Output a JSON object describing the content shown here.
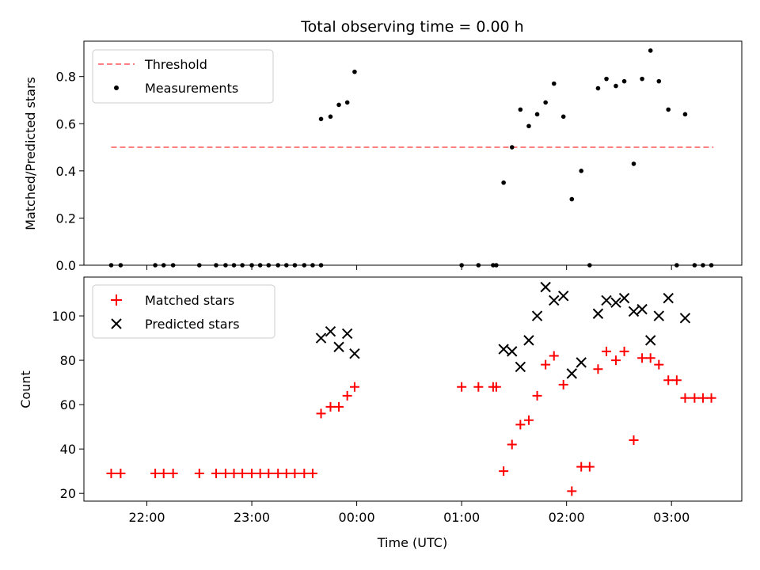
{
  "chart_data": {
    "type": "scatter",
    "title": "Total observing time = 0.00 h",
    "xlabel": "Time (UTC)",
    "x_unit": "hours UTC (22 = 22:00, 24 = 00:00, 27 = 03:00)",
    "xlim": [
      21.4,
      27.67
    ],
    "xticks": [
      {
        "value": 22,
        "label": "22:00"
      },
      {
        "value": 23,
        "label": "23:00"
      },
      {
        "value": 24,
        "label": "00:00"
      },
      {
        "value": 25,
        "label": "01:00"
      },
      {
        "value": 26,
        "label": "02:00"
      },
      {
        "value": 27,
        "label": "03:00"
      }
    ],
    "panels": [
      {
        "id": "ratio",
        "ylabel": "Matched/Predicted stars",
        "ylim": [
          0,
          0.95
        ],
        "yticks": [
          {
            "value": 0,
            "label": "0.0"
          },
          {
            "value": 0.2,
            "label": "0.2"
          },
          {
            "value": 0.4,
            "label": "0.4"
          },
          {
            "value": 0.6,
            "label": "0.6"
          },
          {
            "value": 0.8,
            "label": "0.8"
          }
        ],
        "legend": [
          {
            "label": "Threshold",
            "marker": "dashed-line",
            "color": "#ff8080"
          },
          {
            "label": "Measurements",
            "marker": "dot",
            "color": "#000000"
          }
        ],
        "threshold": {
          "value": 0.5,
          "x_start": 21.66,
          "x_end": 27.4,
          "color": "#ff8080"
        },
        "series": [
          {
            "label": "Measurements",
            "marker": "dot",
            "color": "#000000",
            "points": [
              [
                21.66,
                0
              ],
              [
                21.75,
                0
              ],
              [
                22.08,
                0
              ],
              [
                22.16,
                0
              ],
              [
                22.25,
                0
              ],
              [
                22.5,
                0
              ],
              [
                22.66,
                0
              ],
              [
                22.75,
                0
              ],
              [
                22.83,
                0
              ],
              [
                22.91,
                0
              ],
              [
                23.0,
                0
              ],
              [
                23.08,
                0
              ],
              [
                23.16,
                0
              ],
              [
                23.25,
                0
              ],
              [
                23.33,
                0
              ],
              [
                23.41,
                0
              ],
              [
                23.5,
                0
              ],
              [
                23.58,
                0
              ],
              [
                23.66,
                0
              ],
              [
                23.66,
                0.62
              ],
              [
                23.75,
                0.63
              ],
              [
                23.83,
                0.68
              ],
              [
                23.91,
                0.69
              ],
              [
                23.98,
                0.82
              ],
              [
                25.0,
                0
              ],
              [
                25.16,
                0
              ],
              [
                25.3,
                0
              ],
              [
                25.33,
                0
              ],
              [
                25.4,
                0.35
              ],
              [
                25.48,
                0.5
              ],
              [
                25.56,
                0.66
              ],
              [
                25.64,
                0.59
              ],
              [
                25.72,
                0.64
              ],
              [
                25.8,
                0.69
              ],
              [
                25.88,
                0.77
              ],
              [
                25.97,
                0.63
              ],
              [
                26.05,
                0.28
              ],
              [
                26.14,
                0.4
              ],
              [
                26.22,
                0
              ],
              [
                26.3,
                0.75
              ],
              [
                26.38,
                0.79
              ],
              [
                26.47,
                0.76
              ],
              [
                26.55,
                0.78
              ],
              [
                26.64,
                0.43
              ],
              [
                26.72,
                0.79
              ],
              [
                26.8,
                0.91
              ],
              [
                26.88,
                0.78
              ],
              [
                26.97,
                0.66
              ],
              [
                27.05,
                0
              ],
              [
                27.13,
                0.64
              ],
              [
                27.22,
                0
              ],
              [
                27.3,
                0
              ],
              [
                27.38,
                0
              ]
            ]
          }
        ]
      },
      {
        "id": "counts",
        "ylabel": "Count",
        "ylim": [
          16.5,
          117.5
        ],
        "yticks": [
          {
            "value": 20,
            "label": "20"
          },
          {
            "value": 40,
            "label": "40"
          },
          {
            "value": 60,
            "label": "60"
          },
          {
            "value": 80,
            "label": "80"
          },
          {
            "value": 100,
            "label": "100"
          }
        ],
        "legend": [
          {
            "label": "Matched stars",
            "marker": "plus",
            "color": "#ff0000"
          },
          {
            "label": "Predicted stars",
            "marker": "x",
            "color": "#000000"
          }
        ],
        "series": [
          {
            "label": "Matched stars",
            "marker": "plus",
            "color": "#ff0000",
            "points": [
              [
                21.66,
                29
              ],
              [
                21.75,
                29
              ],
              [
                22.08,
                29
              ],
              [
                22.16,
                29
              ],
              [
                22.25,
                29
              ],
              [
                22.5,
                29
              ],
              [
                22.66,
                29
              ],
              [
                22.75,
                29
              ],
              [
                22.83,
                29
              ],
              [
                22.91,
                29
              ],
              [
                23.0,
                29
              ],
              [
                23.08,
                29
              ],
              [
                23.16,
                29
              ],
              [
                23.25,
                29
              ],
              [
                23.33,
                29
              ],
              [
                23.41,
                29
              ],
              [
                23.5,
                29
              ],
              [
                23.58,
                29
              ],
              [
                23.66,
                56
              ],
              [
                23.75,
                59
              ],
              [
                23.83,
                59
              ],
              [
                23.91,
                64
              ],
              [
                23.98,
                68
              ],
              [
                25.0,
                68
              ],
              [
                25.16,
                68
              ],
              [
                25.3,
                68
              ],
              [
                25.33,
                68
              ],
              [
                25.4,
                30
              ],
              [
                25.48,
                42
              ],
              [
                25.56,
                51
              ],
              [
                25.64,
                53
              ],
              [
                25.72,
                64
              ],
              [
                25.8,
                78
              ],
              [
                25.88,
                82
              ],
              [
                25.97,
                69
              ],
              [
                26.05,
                21
              ],
              [
                26.14,
                32
              ],
              [
                26.22,
                32
              ],
              [
                26.3,
                76
              ],
              [
                26.38,
                84
              ],
              [
                26.47,
                80
              ],
              [
                26.55,
                84
              ],
              [
                26.64,
                44
              ],
              [
                26.72,
                81
              ],
              [
                26.8,
                81
              ],
              [
                26.88,
                78
              ],
              [
                26.97,
                71
              ],
              [
                27.05,
                71
              ],
              [
                27.13,
                63
              ],
              [
                27.22,
                63
              ],
              [
                27.3,
                63
              ],
              [
                27.38,
                63
              ]
            ]
          },
          {
            "label": "Predicted stars",
            "marker": "x",
            "color": "#000000",
            "points": [
              [
                23.66,
                90
              ],
              [
                23.75,
                93
              ],
              [
                23.83,
                86
              ],
              [
                23.91,
                92
              ],
              [
                23.98,
                83
              ],
              [
                25.4,
                85
              ],
              [
                25.48,
                84
              ],
              [
                25.56,
                77
              ],
              [
                25.64,
                89
              ],
              [
                25.72,
                100
              ],
              [
                25.8,
                113
              ],
              [
                25.88,
                107
              ],
              [
                25.97,
                109
              ],
              [
                26.05,
                74
              ],
              [
                26.14,
                79
              ],
              [
                26.3,
                101
              ],
              [
                26.38,
                107
              ],
              [
                26.47,
                106
              ],
              [
                26.55,
                108
              ],
              [
                26.64,
                102
              ],
              [
                26.72,
                103
              ],
              [
                26.8,
                89
              ],
              [
                26.88,
                100
              ],
              [
                26.97,
                108
              ],
              [
                27.13,
                99
              ]
            ]
          }
        ]
      }
    ]
  }
}
